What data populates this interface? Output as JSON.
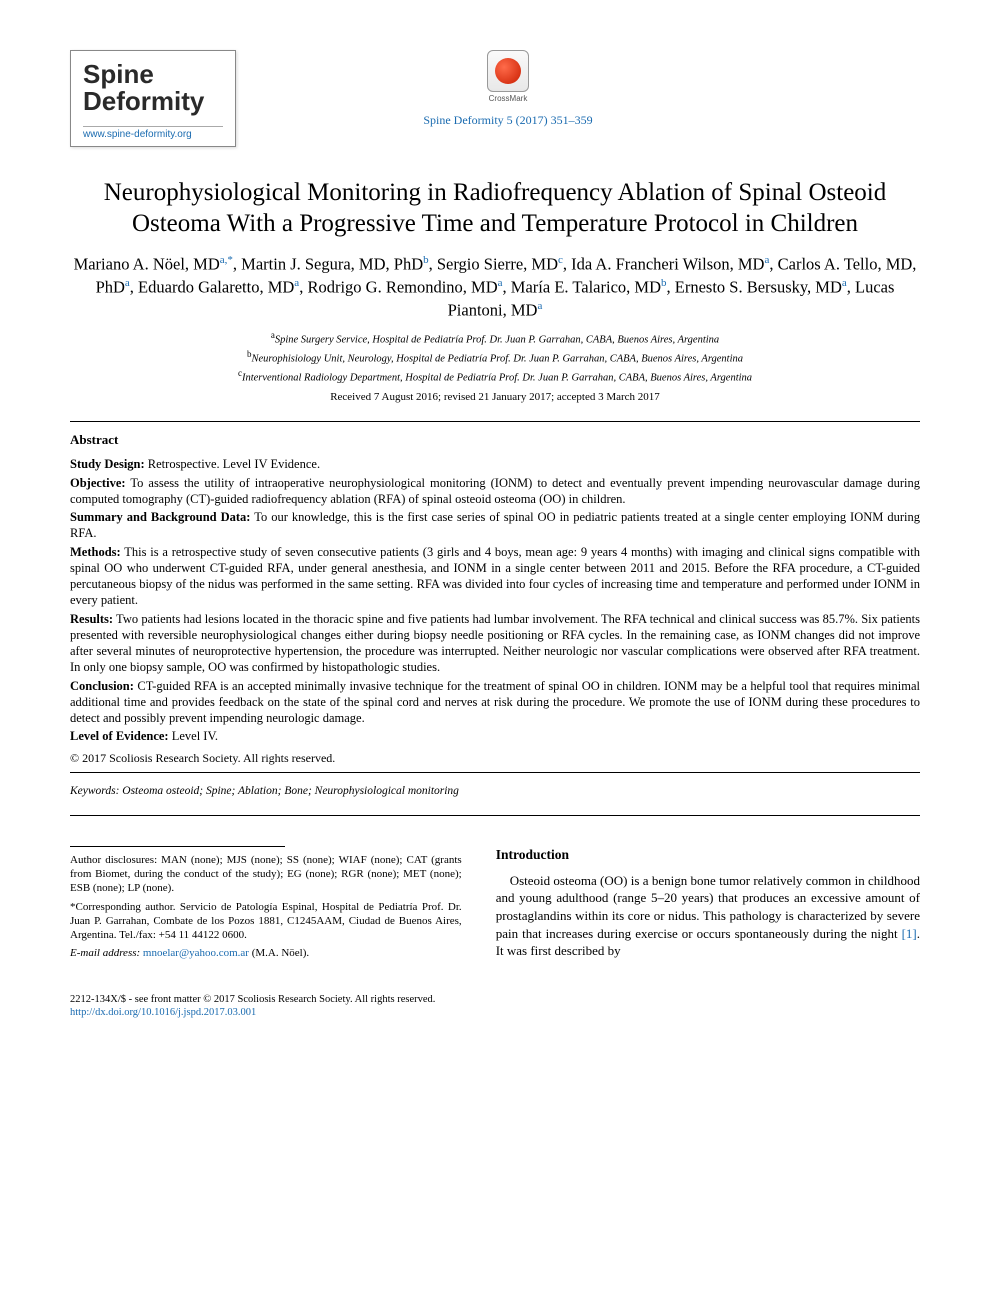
{
  "journal_logo": {
    "name": "Spine Deformity",
    "url": "www.spine-deformity.org"
  },
  "crossmark_label": "CrossMark",
  "citation": "Spine Deformity 5 (2017) 351–359",
  "title": "Neurophysiological Monitoring in Radiofrequency Ablation of Spinal Osteoid Osteoma With a Progressive Time and Temperature Protocol in Children",
  "authors_html": "Mariano A. Nöel, MD<sup class='sup-link'>a,</sup><sup class='sup-star'>*</sup>, Martin J. Segura, MD, PhD<sup class='sup-link'>b</sup>, Sergio Sierre, MD<sup class='sup-link'>c</sup>, Ida A. Francheri Wilson, MD<sup class='sup-link'>a</sup>, Carlos A. Tello, MD, PhD<sup class='sup-link'>a</sup>, Eduardo Galaretto, MD<sup class='sup-link'>a</sup>, Rodrigo G. Remondino, MD<sup class='sup-link'>a</sup>, María E. Talarico, MD<sup class='sup-link'>b</sup>, Ernesto S. Bersusky, MD<sup class='sup-link'>a</sup>, Lucas Piantoni, MD<sup class='sup-link'>a</sup>",
  "affiliations": {
    "a": "Spine Surgery Service, Hospital de Pediatría Prof. Dr. Juan P. Garrahan, CABA, Buenos Aires, Argentina",
    "b": "Neurophisiology Unit, Neurology, Hospital de Pediatría Prof. Dr. Juan P. Garrahan, CABA, Buenos Aires, Argentina",
    "c": "Interventional Radiology Department, Hospital de Pediatría Prof. Dr. Juan P. Garrahan, CABA, Buenos Aires, Argentina"
  },
  "dates": "Received 7 August 2016; revised 21 January 2017; accepted 3 March 2017",
  "abstract_heading": "Abstract",
  "abstract": {
    "study_design_label": "Study Design:",
    "study_design": " Retrospective. Level IV Evidence.",
    "objective_label": "Objective:",
    "objective": " To assess the utility of intraoperative neurophysiological monitoring (IONM) to detect and eventually prevent impending neurovascular damage during computed tomography (CT)-guided radiofrequency ablation (RFA) of spinal osteoid osteoma (OO) in children.",
    "background_label": "Summary and Background Data:",
    "background": " To our knowledge, this is the first case series of spinal OO in pediatric patients treated at a single center employing IONM during RFA.",
    "methods_label": "Methods:",
    "methods": " This is a retrospective study of seven consecutive patients (3 girls and 4 boys, mean age: 9 years 4 months) with imaging and clinical signs compatible with spinal OO who underwent CT-guided RFA, under general anesthesia, and IONM in a single center between 2011 and 2015. Before the RFA procedure, a CT-guided percutaneous biopsy of the nidus was performed in the same setting. RFA was divided into four cycles of increasing time and temperature and performed under IONM in every patient.",
    "results_label": "Results:",
    "results": " Two patients had lesions located in the thoracic spine and five patients had lumbar involvement. The RFA technical and clinical success was 85.7%. Six patients presented with reversible neurophysiological changes either during biopsy needle positioning or RFA cycles. In the remaining case, as IONM changes did not improve after several minutes of neuroprotective hypertension, the procedure was interrupted. Neither neurologic nor vascular complications were observed after RFA treatment. In only one biopsy sample, OO was confirmed by histopathologic studies.",
    "conclusion_label": "Conclusion:",
    "conclusion": " CT-guided RFA is an accepted minimally invasive technique for the treatment of spinal OO in children. IONM may be a helpful tool that requires minimal additional time and provides feedback on the state of the spinal cord and nerves at risk during the procedure. We promote the use of IONM during these procedures to detect and possibly prevent impending neurologic damage.",
    "loe_label": "Level of Evidence:",
    "loe": " Level IV."
  },
  "copyright": "© 2017 Scoliosis Research Society. All rights reserved.",
  "keywords_label": "Keywords:",
  "keywords": " Osteoma osteoid; Spine; Ablation; Bone; Neurophysiological monitoring",
  "footnotes": {
    "disclosures": "Author disclosures: MAN (none); MJS (none); SS (none); WIAF (none); CAT (grants from Biomet, during the conduct of the study); EG (none); RGR (none); MET (none); ESB (none); LP (none).",
    "corresponding": "*Corresponding author. Servicio de Patología Espinal, Hospital de Pediatría Prof. Dr. Juan P. Garrahan, Combate de los Pozos 1881, C1245AAM, Ciudad de Buenos Aires, Argentina. Tel./fax: +54 11 44122 0600.",
    "email_label": "E-mail address: ",
    "email": "mnoelar@yahoo.com.ar",
    "email_author": " (M.A. Nöel)."
  },
  "intro_heading": "Introduction",
  "intro_text_pre": "Osteoid osteoma (OO) is a benign bone tumor relatively common in childhood and young adulthood (range 5–20 years) that produces an excessive amount of prostaglandins within its core or nidus. This pathology is characterized by severe pain that increases during exercise or occurs spontaneously during the night ",
  "intro_ref": "[1]",
  "intro_text_post": ". It was first described by",
  "footer": {
    "line1": "2212-134X/$ - see front matter © 2017 Scoliosis Research Society. All rights reserved.",
    "doi": "http://dx.doi.org/10.1016/j.jspd.2017.03.001"
  },
  "colors": {
    "link": "#1a6bb0",
    "text": "#000000",
    "background": "#ffffff"
  }
}
